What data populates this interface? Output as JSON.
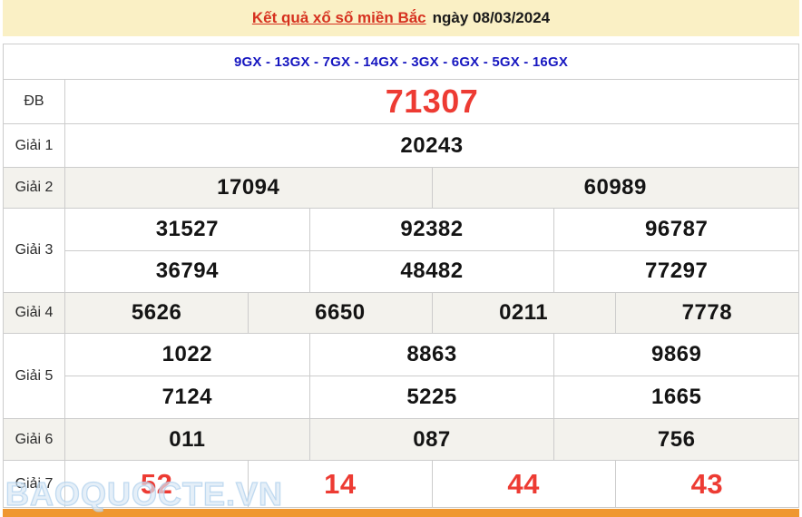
{
  "banner": {
    "title": "Kết quả xổ số miền Bắc",
    "date": "ngày 08/03/2024"
  },
  "stations_line": "9GX - 13GX - 7GX - 14GX - 3GX - 6GX - 5GX - 16GX",
  "results": {
    "db": {
      "label": "ĐB",
      "value": "71307"
    },
    "g1": {
      "label": "Giải 1",
      "value": "20243"
    },
    "g2": {
      "label": "Giải 2",
      "values": [
        "17094",
        "60989"
      ]
    },
    "g3": {
      "label": "Giải 3",
      "rows": [
        [
          "31527",
          "92382",
          "96787"
        ],
        [
          "36794",
          "48482",
          "77297"
        ]
      ]
    },
    "g4": {
      "label": "Giải 4",
      "values": [
        "5626",
        "6650",
        "0211",
        "7778"
      ]
    },
    "g5": {
      "label": "Giải 5",
      "rows": [
        [
          "1022",
          "8863",
          "9869"
        ],
        [
          "7124",
          "5225",
          "1665"
        ]
      ]
    },
    "g6": {
      "label": "Giải 6",
      "values": [
        "011",
        "087",
        "756"
      ]
    },
    "g7": {
      "label": "Giải 7",
      "values": [
        "52",
        "14",
        "44",
        "43"
      ]
    }
  },
  "watermark": "BAOQUOCTE.VN",
  "colors": {
    "banner_bg": "#FAF0C5",
    "title_red": "#D6311F",
    "number_red": "#ED3B33",
    "station_blue": "#1717C0",
    "alt_row_bg": "#F3F2ED",
    "bottom_bar_orange": "#EF9730",
    "border_gray": "#CCCCCC"
  }
}
